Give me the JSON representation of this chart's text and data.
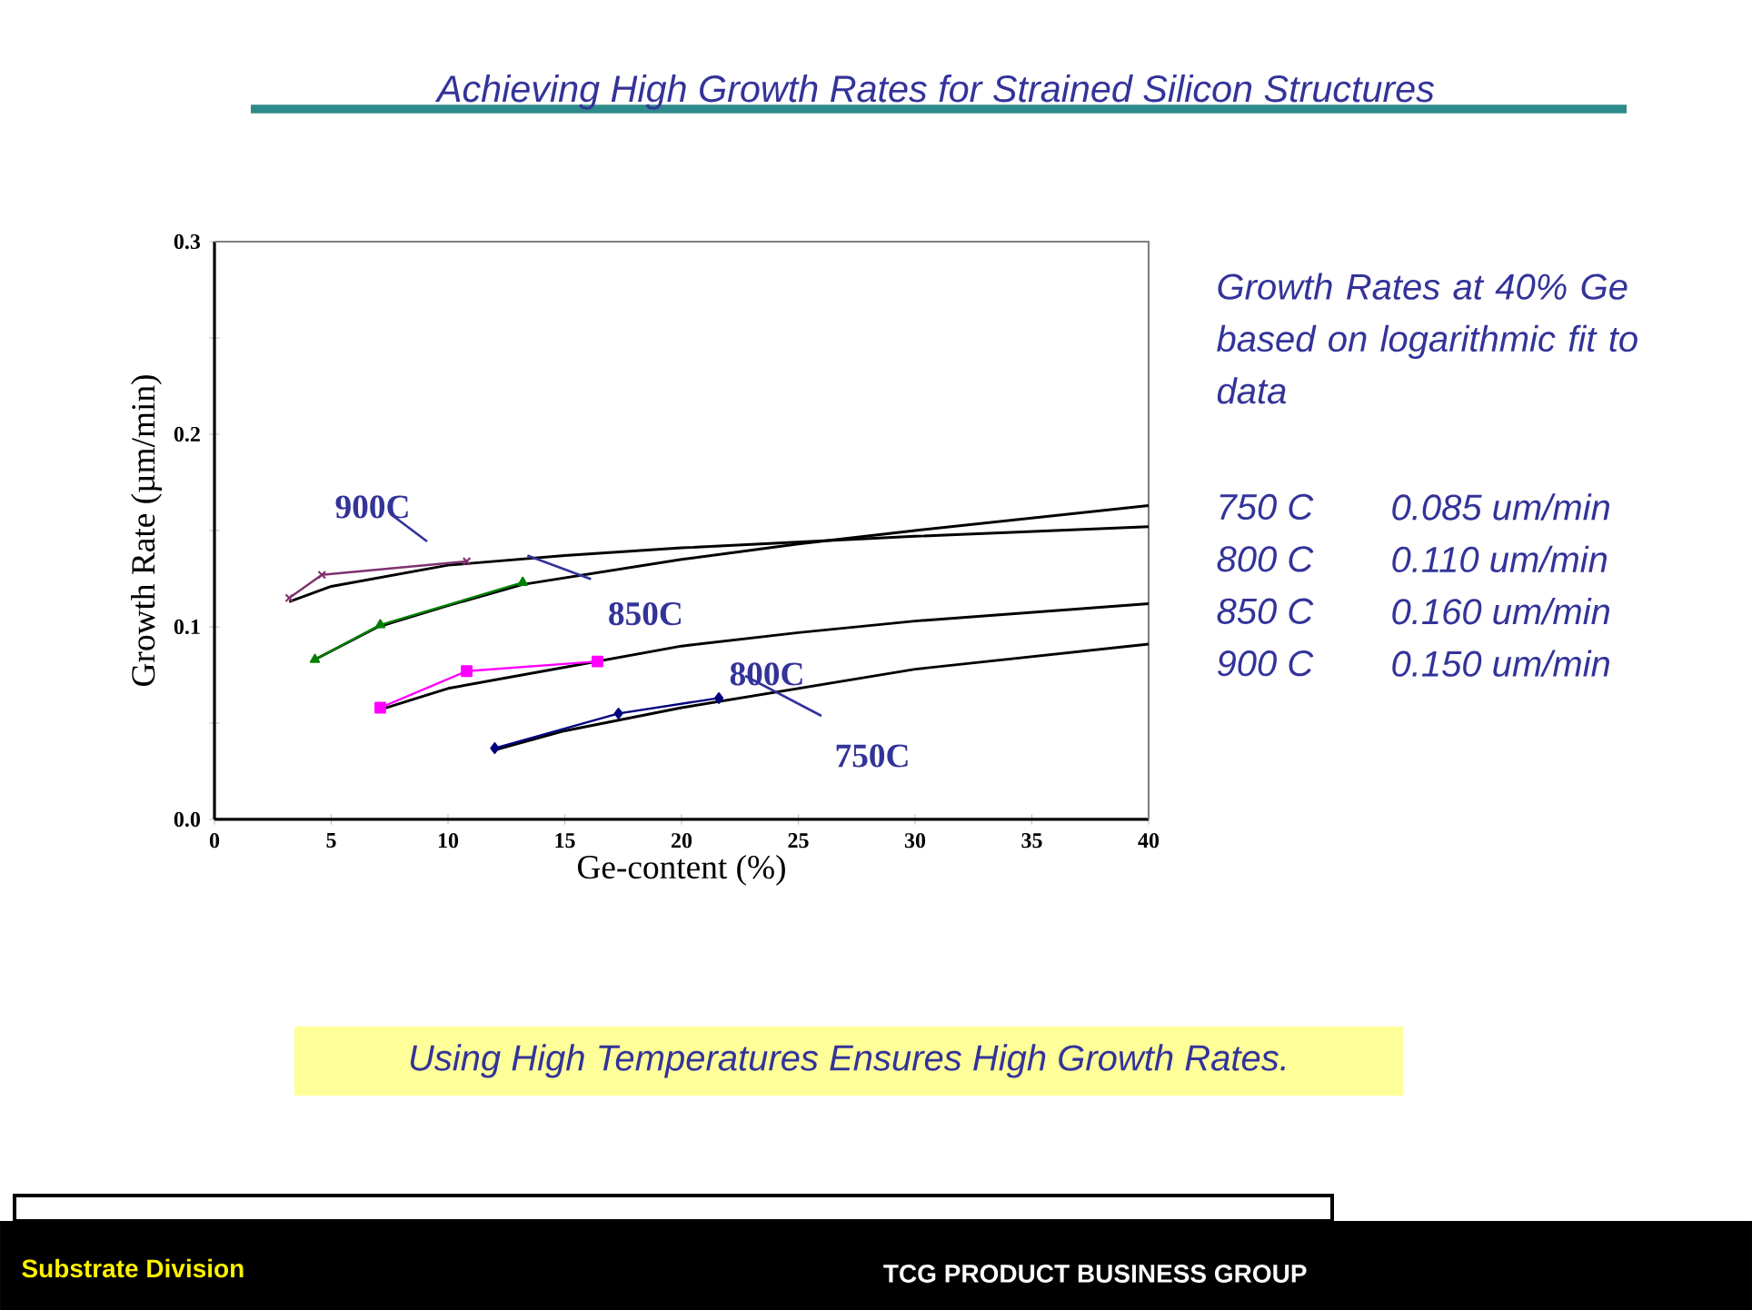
{
  "chart_data": {
    "type": "line",
    "title": "Achieving High Growth Rates for Strained Silicon Structures",
    "xlabel": "Ge-content (%)",
    "ylabel": "Growth Rate (µm/min)",
    "xlim": [
      0,
      40
    ],
    "xticks": [
      0,
      5,
      10,
      15,
      20,
      25,
      30,
      35,
      40
    ],
    "ylim": [
      0,
      0.3
    ],
    "yticks": [
      {
        "value": 0,
        "label": "0.0"
      },
      {
        "value": 0.05,
        "label": null
      },
      {
        "value": 0.1,
        "label": "0.1"
      },
      {
        "value": 0.15,
        "label": null
      },
      {
        "value": 0.2,
        "label": "0.2"
      },
      {
        "value": 0.25,
        "label": null
      },
      {
        "value": 0.3,
        "label": "0.3"
      }
    ],
    "grid": false,
    "series": [
      {
        "color": "#000000",
        "marker": "none",
        "x": [
          3.2,
          5,
          10,
          15,
          20,
          30,
          40
        ],
        "values": [
          0.113,
          0.121,
          0.132,
          0.137,
          0.141,
          0.147,
          0.152
        ]
      },
      {
        "color": "#000000",
        "marker": "none",
        "x": [
          4.3,
          7,
          10,
          13.2,
          20,
          25,
          30,
          40
        ],
        "values": [
          0.083,
          0.1,
          0.111,
          0.122,
          0.135,
          0.143,
          0.15,
          0.163
        ]
      },
      {
        "color": "#000000",
        "marker": "none",
        "x": [
          7.1,
          10,
          15,
          20,
          25,
          30,
          40
        ],
        "values": [
          0.057,
          0.068,
          0.079,
          0.09,
          0.097,
          0.103,
          0.112
        ]
      },
      {
        "color": "#000000",
        "marker": "none",
        "x": [
          12,
          15,
          20,
          25,
          30,
          40
        ],
        "values": [
          0.036,
          0.046,
          0.058,
          0.068,
          0.078,
          0.091
        ]
      },
      {
        "color": "#80306f",
        "marker": "cross",
        "x": [
          3.2,
          4.6,
          10.8
        ],
        "values": [
          0.115,
          0.127,
          0.134
        ]
      },
      {
        "color": "#008000",
        "marker": "triangle",
        "x": [
          4.3,
          7.1,
          13.2
        ],
        "values": [
          0.083,
          0.101,
          0.123
        ]
      },
      {
        "color": "#ff00ff",
        "marker": "square",
        "x": [
          7.1,
          10.8,
          16.4
        ],
        "values": [
          0.058,
          0.077,
          0.082
        ]
      },
      {
        "color": "#000080",
        "marker": "diamond",
        "x": [
          12,
          17.3,
          21.6
        ],
        "values": [
          0.037,
          0.055,
          0.063
        ]
      }
    ],
    "annotations": [
      "900C",
      {
        "text": "850C",
        "x": 13.4,
        "y": 0.137
      },
      "800C",
      "750C",
      "Growth Rates at 40% Ge based on logarithmic fit to data",
      "750 C",
      "0.085 um/min",
      "800 C",
      "0.110 um/min",
      "850 C",
      "0.160 um/min",
      "900 C",
      "0.150 um/min",
      "Using High Temperatures Ensures High Growth Rates.",
      "Substrate Division",
      "TCG PRODUCT BUSINESS GROUP"
    ]
  }
}
